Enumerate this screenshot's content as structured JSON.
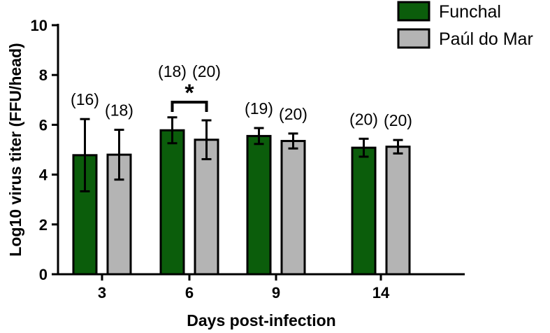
{
  "chart_data": {
    "type": "bar",
    "xlabel": "Days post-infection",
    "ylabel": "Log10 virus titer (FFU/head)",
    "ylim": [
      0,
      10
    ],
    "yticks": [
      0,
      2,
      4,
      6,
      8,
      10
    ],
    "categories": [
      "3",
      "6",
      "9",
      "14"
    ],
    "grid": false,
    "legend_position": "top-right",
    "series": [
      {
        "name": "Funchal",
        "color": "#0b5d0b",
        "values": [
          4.78,
          5.78,
          5.55,
          5.08
        ],
        "error": [
          1.45,
          0.52,
          0.32,
          0.36
        ],
        "n_labels": [
          "(16)",
          "(18)",
          "(19)",
          "(20)"
        ]
      },
      {
        "name": "Paúl do Mar",
        "color": "#b4b4b4",
        "values": [
          4.8,
          5.4,
          5.35,
          5.12
        ],
        "error": [
          1.0,
          0.78,
          0.3,
          0.27
        ],
        "n_labels": [
          "(18)",
          "(20)",
          "(20)",
          "(20)"
        ]
      }
    ],
    "annotations": [
      {
        "text": "*",
        "category": "6",
        "type": "significance-bracket"
      }
    ]
  }
}
